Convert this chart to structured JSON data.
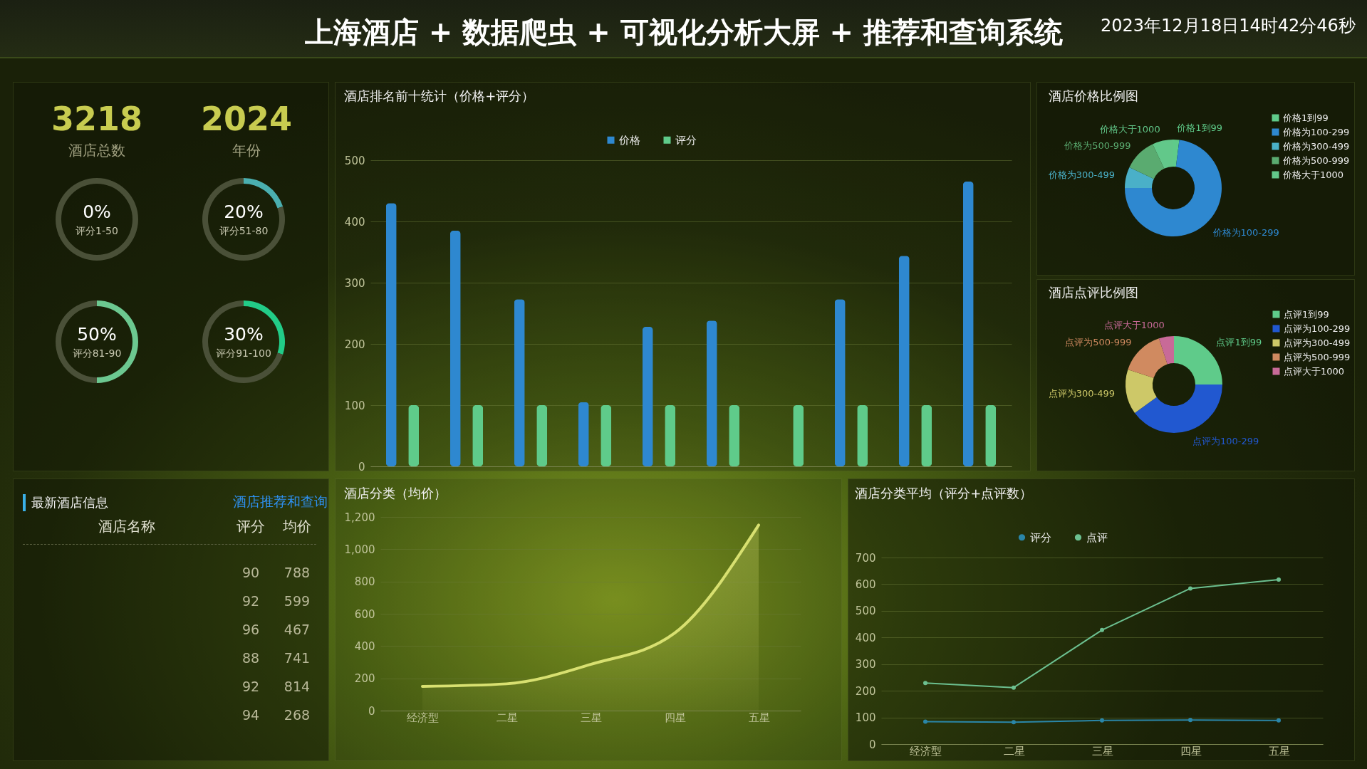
{
  "chart_data": [
    {
      "type": "other",
      "title": "上海酒店 + 数据爬虫 + 可视化分析大屏 + 推荐和查询系统",
      "subtitle": "2023年12月18日14时42分46秒",
      "annotations": [
        "3218",
        "酒店总数",
        "2024",
        "年份"
      ]
    },
    {
      "type": "donut",
      "categories": [
        "评分1-50",
        null
      ],
      "values": [
        0,
        100
      ],
      "colors": [
        "#6cc090",
        "#4a5038"
      ],
      "value_labels": [
        "0%",
        null
      ]
    },
    {
      "type": "donut",
      "categories": [
        "评分51-80",
        null
      ],
      "values": [
        20,
        80
      ],
      "colors": [
        "#4aafb0",
        "#4a5038"
      ],
      "value_labels": [
        "20%",
        null
      ]
    },
    {
      "type": "donut",
      "categories": [
        "评分81-90",
        null
      ],
      "values": [
        50,
        50
      ],
      "colors": [
        "#6cc890",
        "#4a5038"
      ],
      "value_labels": [
        "50%",
        null
      ]
    },
    {
      "type": "donut",
      "categories": [
        "评分91-100",
        null
      ],
      "values": [
        30,
        70
      ],
      "colors": [
        "#22cc88",
        "#4a5038"
      ],
      "value_labels": [
        "30%",
        null
      ]
    },
    {
      "type": "bar",
      "title": "酒店排名前十统计（价格+评分）",
      "categories": [
        null,
        null,
        null,
        null,
        null,
        null,
        null,
        null,
        null,
        null
      ],
      "series": [
        {
          "name": "价格",
          "color": "#2e88d0",
          "values": [
            430,
            385,
            273,
            105,
            228,
            238,
            null,
            273,
            344,
            465
          ]
        },
        {
          "name": "评分",
          "color": "#5fcb8a",
          "values": [
            100,
            100,
            100,
            100,
            100,
            100,
            100,
            100,
            100,
            100
          ]
        }
      ],
      "ylim": [
        0,
        500
      ],
      "yticks": [
        0,
        100,
        200,
        300,
        400,
        500
      ],
      "grid": "y",
      "legend": "top"
    },
    {
      "type": "donut",
      "title": "酒店价格比例图",
      "categories": [
        "价格1到99",
        "价格为100-299",
        "价格为300-499",
        "价格为500-999",
        "价格大于1000"
      ],
      "values": [
        2,
        73,
        7,
        11,
        7
      ],
      "colors": [
        "#5fcb8a",
        "#2e88d0",
        "#4ab0c8",
        "#5aab70",
        "#62c88a"
      ],
      "legend": "right"
    },
    {
      "type": "donut",
      "title": "酒店点评比例图",
      "categories": [
        "点评1到99",
        "点评为100-299",
        "点评为300-499",
        "点评为500-999",
        "点评大于1000"
      ],
      "values": [
        25,
        40,
        15,
        15,
        5
      ],
      "colors": [
        "#5fcb8a",
        "#2158d0",
        "#cdc868",
        "#d08a60",
        "#c86a98"
      ],
      "legend": "right"
    },
    {
      "type": "other",
      "title": "最新酒店信息",
      "annotations": [
        "酒店推荐和查询",
        "酒店名称",
        "评分",
        "均价",
        "90",
        "788",
        "92",
        "599",
        "96",
        "467",
        "88",
        "741",
        "92",
        "814",
        "94",
        "268"
      ]
    },
    {
      "type": "area",
      "title": "酒店分类（均价）",
      "categories": [
        "经济型",
        "二星",
        "三星",
        "四星",
        "五星"
      ],
      "series": [
        {
          "color": "#d8e070",
          "values": [
            150,
            166,
            286,
            480,
            1150
          ]
        }
      ],
      "ylim": [
        0,
        1200
      ],
      "yticks": [
        0,
        200,
        400,
        600,
        800,
        {
          "value": 1000,
          "label": "1,000"
        },
        {
          "value": 1200,
          "label": "1,200"
        }
      ],
      "grid": "y"
    },
    {
      "type": "line",
      "title": "酒店分类平均（评分+点评数）",
      "categories": [
        "经济型",
        "二星",
        "三星",
        "四星",
        "五星"
      ],
      "series": [
        {
          "name": "评分",
          "color": "#2a86a8",
          "values": [
            84,
            82,
            89,
            90,
            89
          ]
        },
        {
          "name": "点评",
          "color": "#6cc090",
          "values": [
            229,
            212,
            428,
            584,
            617
          ]
        }
      ],
      "ylim": [
        0,
        700
      ],
      "yticks": [
        0,
        100,
        200,
        300,
        400,
        500,
        600,
        700
      ],
      "grid": "y",
      "legend": "top",
      "marker": "circle"
    }
  ]
}
